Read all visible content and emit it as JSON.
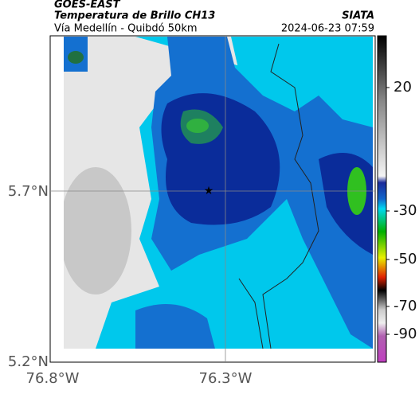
{
  "header": {
    "title": "GOES-EAST",
    "subtitle": "Temperatura de Brillo CH13",
    "location": "Vía Medellín - Quibdó 50km",
    "source": "SIATA",
    "timestamp": "2024-06-23 07:59"
  },
  "map": {
    "lat_ticks": [
      "5.7°N",
      "5.2°N"
    ],
    "lon_ticks": [
      "76.8°W",
      "76.3°W"
    ]
  },
  "colorbar": {
    "ticks": [
      "20",
      "-30",
      "-50",
      "-70",
      "-90"
    ]
  }
}
